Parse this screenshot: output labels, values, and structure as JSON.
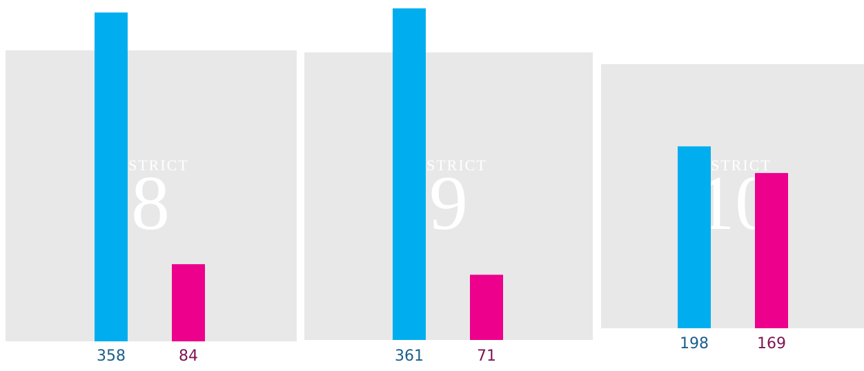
{
  "chart_data": [
    {
      "type": "bar",
      "title": "STRICT",
      "district": "8",
      "values": [
        358,
        84
      ],
      "colors": [
        "#00aeef",
        "#ec008c"
      ],
      "label_colors": [
        "#1b5e8c",
        "#7d1452"
      ]
    },
    {
      "type": "bar",
      "title": "STRICT",
      "district": "9",
      "values": [
        361,
        71
      ],
      "colors": [
        "#00aeef",
        "#ec008c"
      ],
      "label_colors": [
        "#1b5e8c",
        "#7d1452"
      ]
    },
    {
      "type": "bar",
      "title": "STRICT",
      "district": "10",
      "values": [
        198,
        169
      ],
      "colors": [
        "#00aeef",
        "#ec008c"
      ],
      "label_colors": [
        "#1b5e8c",
        "#7d1452"
      ]
    }
  ]
}
